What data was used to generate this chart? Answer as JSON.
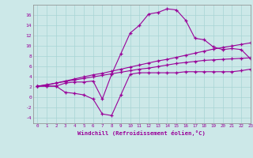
{
  "xlabel": "Windchill (Refroidissement éolien,°C)",
  "background_color": "#cce8e8",
  "line_color": "#990099",
  "xlim": [
    -0.5,
    23
  ],
  "ylim": [
    -5,
    18
  ],
  "xticks": [
    0,
    1,
    2,
    3,
    4,
    5,
    6,
    7,
    8,
    9,
    10,
    11,
    12,
    13,
    14,
    15,
    16,
    17,
    18,
    19,
    20,
    21,
    22,
    23
  ],
  "yticks": [
    -4,
    -2,
    0,
    2,
    4,
    6,
    8,
    10,
    12,
    14,
    16
  ],
  "series": [
    [
      2.2,
      2.2,
      2.2,
      2.8,
      3.0,
      3.0,
      3.2,
      -0.3,
      4.5,
      8.5,
      12.5,
      14.0,
      16.2,
      16.5,
      17.2,
      17.0,
      15.0,
      11.5,
      11.2,
      9.8,
      9.3,
      9.5,
      9.3,
      7.5
    ],
    [
      2.2,
      2.2,
      2.2,
      1.0,
      0.8,
      0.5,
      -0.3,
      -3.2,
      -3.5,
      0.5,
      4.5,
      4.8,
      4.8,
      4.8,
      4.8,
      4.8,
      5.0,
      5.0,
      5.0,
      5.0,
      5.0,
      5.0,
      5.2,
      5.5
    ],
    [
      2.2,
      2.4,
      2.8,
      3.2,
      3.6,
      4.0,
      4.4,
      4.7,
      5.1,
      5.5,
      5.9,
      6.3,
      6.7,
      7.1,
      7.4,
      7.8,
      8.2,
      8.6,
      9.0,
      9.4,
      9.7,
      10.0,
      10.3,
      10.6
    ],
    [
      2.2,
      2.5,
      2.8,
      3.1,
      3.4,
      3.7,
      4.0,
      4.3,
      4.6,
      4.9,
      5.2,
      5.5,
      5.7,
      6.0,
      6.3,
      6.6,
      6.8,
      7.0,
      7.2,
      7.3,
      7.4,
      7.5,
      7.6,
      7.7
    ]
  ]
}
